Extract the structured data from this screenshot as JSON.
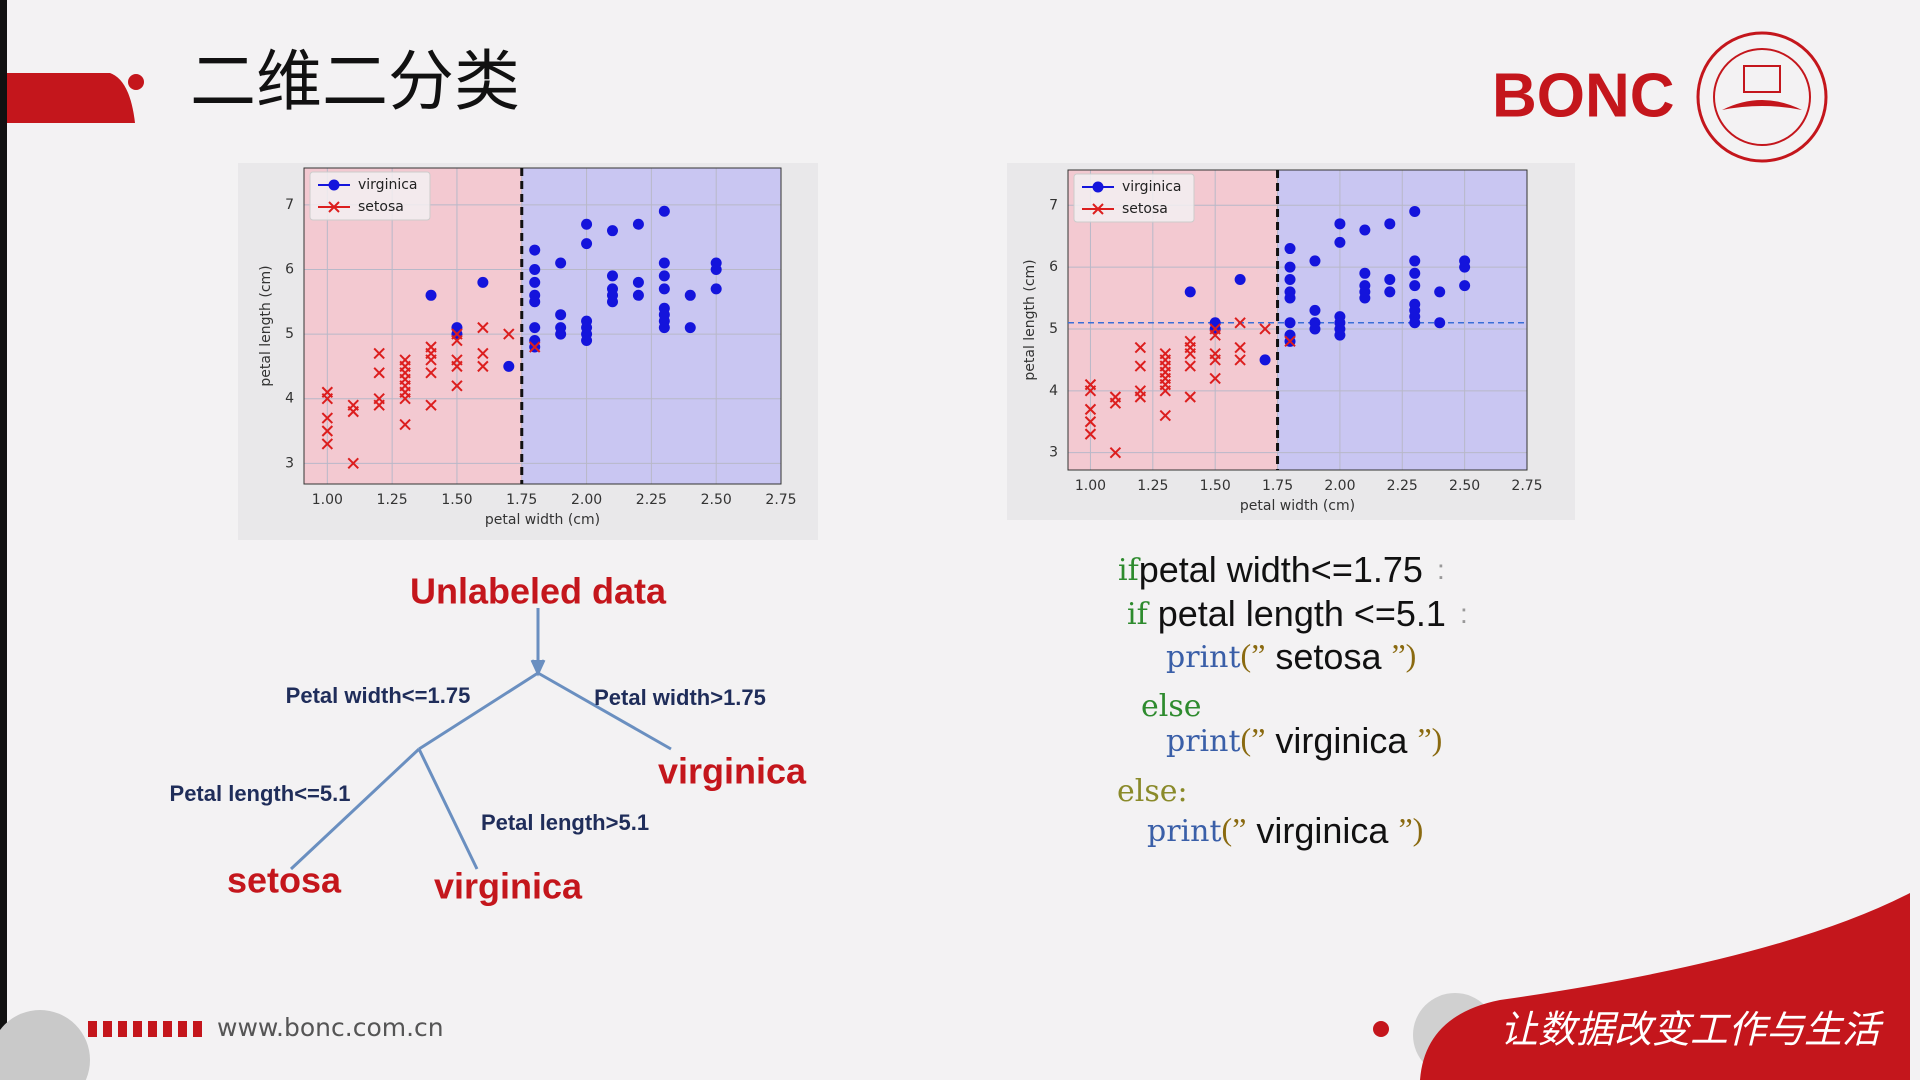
{
  "header": {
    "title": "二维二分类",
    "brand": "BONC"
  },
  "chart_data": [
    {
      "type": "scatter",
      "xlabel": "petal width (cm)",
      "ylabel": "petal length (cm)",
      "xlim": [
        0.91,
        2.75
      ],
      "ylim": [
        2.68,
        7.57
      ],
      "xticks": [
        {
          "value": 1,
          "label": "1.00"
        },
        {
          "value": 1.25,
          "label": "1.25"
        },
        {
          "value": 1.5,
          "label": "1.50"
        },
        {
          "value": 1.75,
          "label": "1.75"
        },
        {
          "value": 2,
          "label": "2.00"
        },
        {
          "value": 2.25,
          "label": "2.25"
        },
        {
          "value": 2.5,
          "label": "2.50"
        },
        {
          "value": 2.75,
          "label": "2.75"
        }
      ],
      "yticks": [
        3,
        4,
        5,
        6,
        7
      ],
      "grid": true,
      "legend": "upper left",
      "vline": 1.75,
      "region_colors": [
        "#f3c9d1",
        "#c9c6f2"
      ],
      "series": [
        {
          "name": "virginica",
          "color": "#1414dc",
          "marker": "o",
          "x": [
            1.4,
            1.5,
            1.5,
            1.6,
            1.7,
            1.8,
            1.8,
            1.8,
            1.8,
            1.8,
            1.8,
            1.8,
            1.8,
            1.9,
            1.9,
            1.9,
            1.9,
            2.0,
            2.0,
            2.0,
            2.0,
            2.0,
            2.0,
            2.1,
            2.1,
            2.1,
            2.1,
            2.1,
            2.2,
            2.2,
            2.2,
            2.3,
            2.3,
            2.3,
            2.3,
            2.3,
            2.3,
            2.3,
            2.3,
            2.4,
            2.4,
            2.5,
            2.5,
            2.5
          ],
          "values": [
            5.6,
            5.1,
            5.0,
            5.8,
            4.5,
            6.3,
            6.0,
            5.8,
            5.6,
            5.5,
            5.1,
            4.9,
            4.8,
            6.1,
            5.3,
            5.1,
            5.0,
            6.7,
            6.4,
            5.2,
            5.1,
            5.0,
            4.9,
            6.6,
            5.9,
            5.7,
            5.6,
            5.5,
            6.7,
            5.8,
            5.6,
            6.9,
            6.1,
            5.9,
            5.7,
            5.4,
            5.3,
            5.2,
            5.1,
            5.6,
            5.1,
            6.1,
            6.0,
            5.7
          ]
        },
        {
          "name": "setosa",
          "color": "#dc1e1e",
          "marker": "x",
          "x": [
            1.0,
            1.0,
            1.0,
            1.0,
            1.0,
            1.1,
            1.1,
            1.1,
            1.2,
            1.2,
            1.2,
            1.2,
            1.3,
            1.3,
            1.3,
            1.3,
            1.3,
            1.3,
            1.3,
            1.3,
            1.4,
            1.4,
            1.4,
            1.4,
            1.4,
            1.5,
            1.5,
            1.5,
            1.5,
            1.5,
            1.6,
            1.6,
            1.6,
            1.7,
            1.8
          ],
          "values": [
            4.1,
            4.0,
            3.7,
            3.5,
            3.3,
            3.0,
            3.8,
            3.9,
            4.7,
            4.4,
            4.0,
            3.9,
            4.6,
            4.5,
            4.4,
            4.3,
            4.2,
            4.1,
            4.0,
            3.6,
            4.8,
            4.7,
            4.6,
            4.4,
            3.9,
            5.0,
            4.9,
            4.6,
            4.5,
            4.2,
            5.1,
            4.7,
            4.5,
            5.0,
            4.8
          ]
        }
      ]
    },
    {
      "type": "scatter",
      "xlabel": "petal width (cm)",
      "ylabel": "petal length (cm)",
      "xlim": [
        0.91,
        2.75
      ],
      "ylim": [
        2.72,
        7.57
      ],
      "xticks": [
        {
          "value": 1,
          "label": "1.00"
        },
        {
          "value": 1.25,
          "label": "1.25"
        },
        {
          "value": 1.5,
          "label": "1.50"
        },
        {
          "value": 1.75,
          "label": "1.75"
        },
        {
          "value": 2,
          "label": "2.00"
        },
        {
          "value": 2.25,
          "label": "2.25"
        },
        {
          "value": 2.5,
          "label": "2.50"
        },
        {
          "value": 2.75,
          "label": "2.75"
        }
      ],
      "yticks": [
        3,
        4,
        5,
        6,
        7
      ],
      "grid": true,
      "legend": "upper left",
      "vline": 1.75,
      "hline": 5.1,
      "region_colors": [
        "#f3c9d1",
        "#c9c6f2"
      ],
      "series": [
        {
          "name": "virginica",
          "color": "#1414dc",
          "marker": "o",
          "x": [
            1.4,
            1.5,
            1.5,
            1.6,
            1.7,
            1.8,
            1.8,
            1.8,
            1.8,
            1.8,
            1.8,
            1.8,
            1.8,
            1.9,
            1.9,
            1.9,
            1.9,
            2.0,
            2.0,
            2.0,
            2.0,
            2.0,
            2.0,
            2.1,
            2.1,
            2.1,
            2.1,
            2.1,
            2.2,
            2.2,
            2.2,
            2.3,
            2.3,
            2.3,
            2.3,
            2.3,
            2.3,
            2.3,
            2.3,
            2.4,
            2.4,
            2.5,
            2.5,
            2.5
          ],
          "values": [
            5.6,
            5.1,
            5.0,
            5.8,
            4.5,
            6.3,
            6.0,
            5.8,
            5.6,
            5.5,
            5.1,
            4.9,
            4.8,
            6.1,
            5.3,
            5.1,
            5.0,
            6.7,
            6.4,
            5.2,
            5.1,
            5.0,
            4.9,
            6.6,
            5.9,
            5.7,
            5.6,
            5.5,
            6.7,
            5.8,
            5.6,
            6.9,
            6.1,
            5.9,
            5.7,
            5.4,
            5.3,
            5.2,
            5.1,
            5.6,
            5.1,
            6.1,
            6.0,
            5.7
          ]
        },
        {
          "name": "setosa",
          "color": "#dc1e1e",
          "marker": "x",
          "x": [
            1.0,
            1.0,
            1.0,
            1.0,
            1.0,
            1.1,
            1.1,
            1.1,
            1.2,
            1.2,
            1.2,
            1.2,
            1.3,
            1.3,
            1.3,
            1.3,
            1.3,
            1.3,
            1.3,
            1.3,
            1.4,
            1.4,
            1.4,
            1.4,
            1.4,
            1.5,
            1.5,
            1.5,
            1.5,
            1.5,
            1.6,
            1.6,
            1.6,
            1.7,
            1.8
          ],
          "values": [
            4.1,
            4.0,
            3.7,
            3.5,
            3.3,
            3.0,
            3.8,
            3.9,
            4.7,
            4.4,
            4.0,
            3.9,
            4.6,
            4.5,
            4.4,
            4.3,
            4.2,
            4.1,
            4.0,
            3.6,
            4.8,
            4.7,
            4.6,
            4.4,
            3.9,
            5.0,
            4.9,
            4.6,
            4.5,
            4.2,
            5.1,
            4.7,
            4.5,
            5.0,
            4.8
          ]
        }
      ]
    }
  ],
  "tree": {
    "root": "Unlabeled data",
    "edges": [
      "Petal width<=1.75",
      "Petal width>1.75",
      "Petal length<=5.1",
      "Petal length>5.1"
    ],
    "leaves": [
      "virginica",
      "setosa",
      "virginica"
    ]
  },
  "code": {
    "lines": [
      [
        {
          "kind": "keyword",
          "text": "if"
        },
        {
          "kind": "text",
          "text": "petal width<=1.75"
        },
        {
          "kind": "punct",
          "text": ":"
        }
      ],
      [
        {
          "kind": "keyword",
          "text": "if"
        },
        {
          "kind": "text",
          "text": " petal length <=5.1"
        },
        {
          "kind": "punct",
          "text": ":"
        }
      ],
      [
        {
          "kind": "call",
          "text": "print"
        },
        {
          "kind": "quote",
          "text": "(”"
        },
        {
          "kind": "text",
          "text": " setosa "
        },
        {
          "kind": "quote",
          "text": "”)"
        }
      ],
      [
        {
          "kind": "keyword",
          "text": "else"
        }
      ],
      [
        {
          "kind": "call",
          "text": "print"
        },
        {
          "kind": "quote",
          "text": "(”"
        },
        {
          "kind": "text",
          "text": " virginica "
        },
        {
          "kind": "quote",
          "text": "”)"
        }
      ],
      [
        {
          "kind": "else",
          "text": "else:"
        }
      ],
      [
        {
          "kind": "call",
          "text": "print"
        },
        {
          "kind": "quote",
          "text": "(”"
        },
        {
          "kind": "text",
          "text": " virginica "
        },
        {
          "kind": "quote",
          "text": "”)"
        }
      ]
    ]
  },
  "footer": {
    "url": "www.bonc.com.cn",
    "slogan": "让数据改变工作与生活"
  }
}
